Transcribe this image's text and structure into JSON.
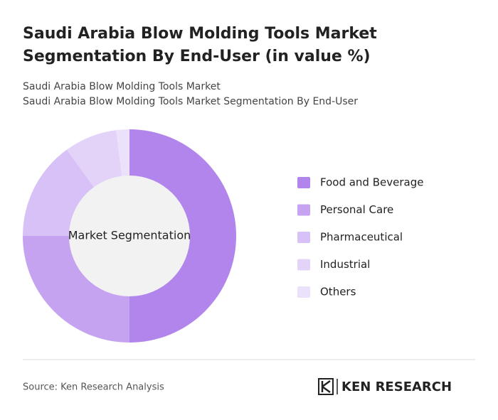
{
  "chart_data": {
    "type": "donut",
    "title": "Saudi Arabia Blow Molding Tools Market Segmentation By End-User (in value %)",
    "subtitle": [
      "Saudi Arabia Blow Molding Tools Market",
      "Saudi Arabia Blow Molding Tools Market Segmentation By End-User"
    ],
    "center_label": "Market Segmentation",
    "categories": [
      "Food and Beverage",
      "Personal Care",
      "Pharmaceutical",
      "Industrial",
      "Others"
    ],
    "values": [
      50,
      25,
      15,
      8,
      2
    ],
    "colors": [
      "#b285ec",
      "#c6a3f1",
      "#d8c1f6",
      "#e3d3f9",
      "#ece1fb"
    ],
    "legend": "right",
    "source": "Source: Ken Research Analysis",
    "logo": "KEN RESEARCH"
  }
}
